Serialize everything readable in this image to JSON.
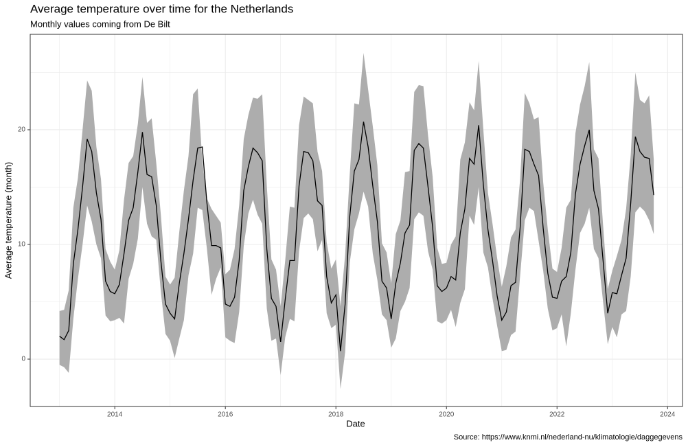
{
  "chart_data": {
    "type": "line",
    "title": "Average temperature over time for the Netherlands",
    "subtitle": "Monthly values coming from De Bilt",
    "x_label": "Date",
    "y_label": "Average temperature (month)",
    "caption": "Source: https://www.knmi.nl/nederland-nu/klimatologie/daggegevens",
    "x": [
      2013,
      2013.083,
      2013.167,
      2013.25,
      2013.333,
      2013.417,
      2013.5,
      2013.583,
      2013.667,
      2013.75,
      2013.833,
      2013.917,
      2014,
      2014.083,
      2014.167,
      2014.25,
      2014.333,
      2014.417,
      2014.5,
      2014.583,
      2014.667,
      2014.75,
      2014.833,
      2014.917,
      2015,
      2015.083,
      2015.167,
      2015.25,
      2015.333,
      2015.417,
      2015.5,
      2015.583,
      2015.667,
      2015.75,
      2015.833,
      2015.917,
      2016,
      2016.083,
      2016.167,
      2016.25,
      2016.333,
      2016.417,
      2016.5,
      2016.583,
      2016.667,
      2016.75,
      2016.833,
      2016.917,
      2017,
      2017.083,
      2017.167,
      2017.25,
      2017.333,
      2017.417,
      2017.5,
      2017.583,
      2017.667,
      2017.75,
      2017.833,
      2017.917,
      2018,
      2018.083,
      2018.167,
      2018.25,
      2018.333,
      2018.417,
      2018.5,
      2018.583,
      2018.667,
      2018.75,
      2018.833,
      2018.917,
      2019,
      2019.083,
      2019.167,
      2019.25,
      2019.333,
      2019.417,
      2019.5,
      2019.583,
      2019.667,
      2019.75,
      2019.833,
      2019.917,
      2020,
      2020.083,
      2020.167,
      2020.25,
      2020.333,
      2020.417,
      2020.5,
      2020.583,
      2020.667,
      2020.75,
      2020.833,
      2020.917,
      2021,
      2021.083,
      2021.167,
      2021.25,
      2021.333,
      2021.417,
      2021.5,
      2021.583,
      2021.667,
      2021.75,
      2021.833,
      2021.917,
      2022,
      2022.083,
      2022.167,
      2022.25,
      2022.333,
      2022.417,
      2022.5,
      2022.583,
      2022.667,
      2022.75,
      2022.833,
      2022.917,
      2023,
      2023.083,
      2023.167,
      2023.25,
      2023.333,
      2023.417,
      2023.5,
      2023.583,
      2023.667,
      2023.75
    ],
    "series": [
      {
        "color": "#000000",
        "values": [
          2.0,
          1.7,
          2.5,
          8.3,
          11.3,
          15.0,
          19.2,
          18.1,
          14.5,
          12.2,
          6.8,
          5.9,
          5.7,
          6.5,
          9.2,
          12.1,
          13.2,
          16.3,
          19.8,
          16.1,
          15.9,
          13.4,
          8.6,
          4.8,
          4.0,
          3.5,
          6.6,
          9.2,
          12.2,
          15.6,
          18.4,
          18.5,
          13.6,
          9.9,
          9.9,
          9.7,
          4.8,
          4.6,
          5.4,
          8.6,
          14.7,
          16.8,
          18.4,
          18.0,
          17.3,
          9.6,
          5.3,
          4.6,
          1.5,
          5.2,
          8.6,
          8.6,
          15.1,
          18.1,
          18.0,
          17.3,
          13.8,
          13.4,
          7.2,
          4.9,
          5.6,
          0.7,
          4.8,
          12.4,
          16.4,
          17.4,
          20.7,
          18.5,
          15.1,
          12.0,
          6.8,
          6.2,
          3.5,
          6.6,
          8.4,
          11.0,
          11.7,
          18.2,
          18.8,
          18.4,
          15.0,
          11.5,
          6.4,
          5.9,
          6.2,
          7.2,
          6.9,
          11.0,
          13.1,
          17.5,
          17.0,
          20.4,
          15.2,
          11.3,
          8.6,
          5.5,
          3.4,
          4.1,
          6.4,
          6.7,
          11.5,
          18.3,
          18.1,
          17.0,
          16.0,
          11.4,
          7.5,
          5.4,
          5.3,
          6.8,
          7.2,
          9.3,
          14.4,
          17.0,
          18.6,
          20.0,
          14.7,
          13.1,
          8.6,
          4.0,
          5.8,
          5.7,
          7.3,
          8.8,
          13.6,
          19.4,
          18.1,
          17.6,
          17.5,
          14.3
        ]
      }
    ],
    "ribbon": {
      "color": "#adadad",
      "lower": [
        -0.5,
        -0.7,
        -1.2,
        3.5,
        7.0,
        10.0,
        13.4,
        12.0,
        10.0,
        8.8,
        3.8,
        3.3,
        3.4,
        3.6,
        3.1,
        7.0,
        8.3,
        10.5,
        15.0,
        11.8,
        10.7,
        10.4,
        5.9,
        2.2,
        1.6,
        0.1,
        1.8,
        3.4,
        7.3,
        9.2,
        13.2,
        13.0,
        9.6,
        5.6,
        7.0,
        8.0,
        1.9,
        1.6,
        1.4,
        4.1,
        9.9,
        12.7,
        13.9,
        12.6,
        11.8,
        4.4,
        1.6,
        1.8,
        -1.4,
        1.9,
        3.5,
        3.3,
        9.4,
        12.3,
        12.7,
        12.2,
        9.4,
        10.4,
        4.0,
        2.7,
        3.0,
        -2.6,
        0.6,
        8.4,
        11.3,
        12.7,
        14.6,
        13.3,
        9.2,
        6.9,
        3.9,
        3.4,
        1.0,
        1.8,
        4.2,
        5.0,
        6.2,
        12.2,
        12.8,
        12.5,
        9.4,
        7.8,
        3.3,
        3.1,
        3.4,
        4.3,
        2.8,
        4.9,
        6.1,
        12.5,
        11.7,
        15.0,
        9.3,
        8.0,
        5.3,
        2.9,
        0.7,
        0.8,
        2.1,
        2.4,
        7.3,
        12.1,
        13.2,
        12.9,
        10.3,
        7.7,
        4.4,
        2.5,
        2.7,
        3.9,
        1.1,
        4.0,
        7.8,
        11.0,
        11.8,
        13.2,
        9.6,
        8.8,
        5.0,
        1.3,
        2.8,
        1.9,
        3.9,
        4.2,
        7.2,
        12.8,
        13.3,
        12.9,
        12.1,
        10.9
      ],
      "upper": [
        4.2,
        4.3,
        6.0,
        13.2,
        15.8,
        20.0,
        24.3,
        23.4,
        18.5,
        15.7,
        9.6,
        8.5,
        7.8,
        9.5,
        13.9,
        17.1,
        17.7,
        20.5,
        24.6,
        20.6,
        21.0,
        17.1,
        12.6,
        7.2,
        6.5,
        7.1,
        11.1,
        14.7,
        17.7,
        23.1,
        23.6,
        17.3,
        14.0,
        13.1,
        12.5,
        11.9,
        7.4,
        7.8,
        9.6,
        13.4,
        19.2,
        21.3,
        22.8,
        22.7,
        23.1,
        15.1,
        8.7,
        7.8,
        4.6,
        8.6,
        13.3,
        13.2,
        20.4,
        22.9,
        22.6,
        22.3,
        18.1,
        16.4,
        10.2,
        7.9,
        8.7,
        4.6,
        9.1,
        16.1,
        22.3,
        22.2,
        26.7,
        23.5,
        20.3,
        16.9,
        10.1,
        9.3,
        6.6,
        10.9,
        12.1,
        16.3,
        16.4,
        23.3,
        23.9,
        23.8,
        19.5,
        15.9,
        9.7,
        8.3,
        8.4,
        10.0,
        10.7,
        17.4,
        18.9,
        22.4,
        21.7,
        26.0,
        20.0,
        14.5,
        11.8,
        8.8,
        6.3,
        8.1,
        10.6,
        11.3,
        15.7,
        23.2,
        22.3,
        20.9,
        21.1,
        15.4,
        11.3,
        7.9,
        7.6,
        9.7,
        13.2,
        13.9,
        19.7,
        22.2,
        23.8,
        25.9,
        18.3,
        17.5,
        11.7,
        6.1,
        7.7,
        9.0,
        10.4,
        13.1,
        17.8,
        25.0,
        22.6,
        22.3,
        23.0,
        17.4
      ]
    },
    "xlim": [
      2012.47,
      2024.27
    ],
    "xticks": [
      2014,
      2016,
      2018,
      2020,
      2022,
      2024
    ],
    "ylim": [
      -4.13,
      28.32
    ],
    "yticks": [
      0,
      10,
      20
    ],
    "grid": true
  }
}
